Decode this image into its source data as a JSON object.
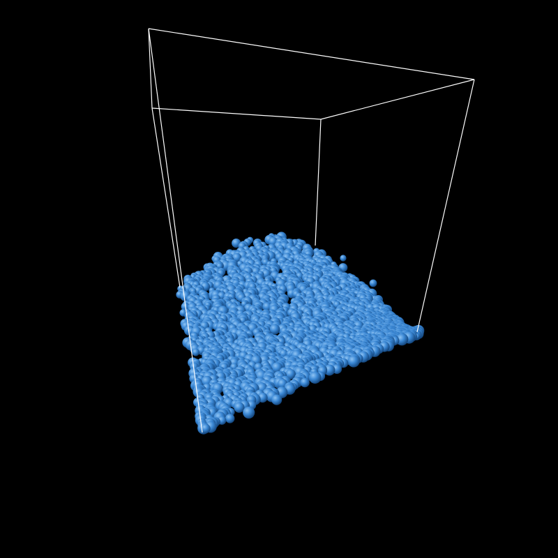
{
  "scene": {
    "background_color": "#000000",
    "box_edge_color": "#ffffff",
    "particle_color": "#3a87d4",
    "particle_highlight_color": "#8fc4f4",
    "particle_shadow_color": "#0e3c70",
    "particle_shape": "sphere"
  }
}
